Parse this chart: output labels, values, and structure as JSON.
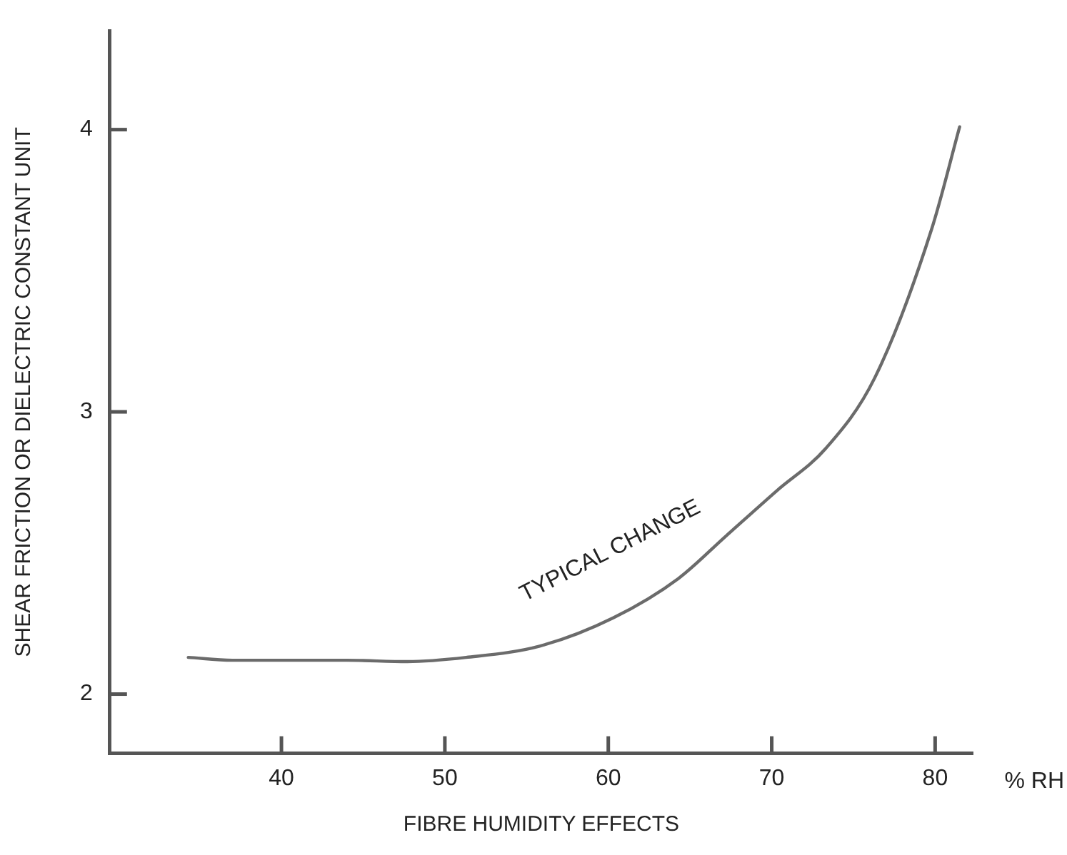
{
  "chart_data": {
    "type": "line",
    "xlabel": "FIBRE HUMIDITY EFFECTS",
    "ylabel": "SHEAR FRICTION OR DIELECTRIC CONSTANT UNIT",
    "x": [
      34.3,
      37,
      40,
      44,
      47.7,
      51.3,
      55.8,
      60.3,
      64.3,
      67.2,
      70.3,
      73.3,
      76.3,
      79.8,
      81.5
    ],
    "series": [
      {
        "color": "#6b6b6b",
        "values": [
          2.13,
          2.12,
          2.12,
          2.12,
          2.115,
          2.13,
          2.17,
          2.27,
          2.41,
          2.56,
          2.72,
          2.87,
          3.12,
          3.65,
          4.01
        ]
      }
    ],
    "xlim": [
      29.5,
      82.3
    ],
    "xticks": [
      40,
      50,
      60,
      70,
      80
    ],
    "ylim": [
      1.79,
      4.35
    ],
    "yticks": [
      2,
      3,
      4
    ],
    "grid": false,
    "legend": false,
    "marker": "none",
    "line_style": "solid",
    "annotations": [
      "TYPICAL CHANGE",
      "% RH"
    ]
  }
}
